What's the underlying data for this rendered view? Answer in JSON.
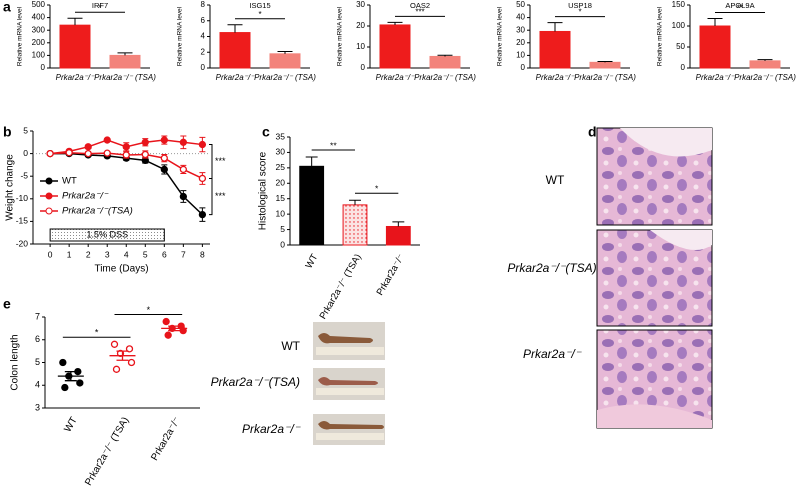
{
  "chart_data": [
    {
      "type": "bar",
      "panel": "a",
      "title": "IRF7",
      "ylabel": "Relative mRNA level",
      "categories": [
        "Prkar2a⁻/⁻",
        "Prkar2a⁻/⁻ (TSA)"
      ],
      "values": [
        340,
        100
      ],
      "errors": [
        55,
        20
      ],
      "colors": [
        "#ee1c1c",
        "#f3837b"
      ],
      "ylim": [
        0,
        500
      ],
      "yticks": [
        0,
        100,
        200,
        300,
        400,
        500
      ],
      "significance": [
        "*"
      ]
    },
    {
      "type": "bar",
      "title": "ISG15",
      "ylabel": "Relative mRNA level",
      "categories": [
        "Prkar2a⁻/⁻",
        "Prkar2a⁻/⁻ (TSA)"
      ],
      "values": [
        4.5,
        1.8
      ],
      "errors": [
        1.0,
        0.3
      ],
      "colors": [
        "#ee1c1c",
        "#f3837b"
      ],
      "ylim": [
        0,
        8
      ],
      "yticks": [
        0,
        2,
        4,
        6,
        8
      ],
      "significance": [
        "*"
      ]
    },
    {
      "type": "bar",
      "title": "OAS2",
      "ylabel": "Relative mRNA level",
      "categories": [
        "Prkar2a⁻/⁻",
        "Prkar2a⁻/⁻ (TSA)"
      ],
      "values": [
        20.5,
        5.5
      ],
      "errors": [
        1.2,
        0.6
      ],
      "colors": [
        "#ee1c1c",
        "#f3837b"
      ],
      "ylim": [
        0,
        30
      ],
      "yticks": [
        0,
        10,
        20,
        30
      ],
      "significance": [
        "***"
      ]
    },
    {
      "type": "bar",
      "title": "USP18",
      "ylabel": "Relative mRNA level",
      "categories": [
        "Prkar2a⁻/⁻",
        "Prkar2a⁻/⁻ (TSA)"
      ],
      "values": [
        29,
        4.5
      ],
      "errors": [
        7,
        0.7
      ],
      "colors": [
        "#ee1c1c",
        "#f3837b"
      ],
      "ylim": [
        0,
        50
      ],
      "yticks": [
        0,
        10,
        20,
        30,
        40,
        50
      ],
      "significance": [
        "*"
      ]
    },
    {
      "type": "bar",
      "title": "APOL9A",
      "ylabel": "Relative mRNA level",
      "categories": [
        "Prkar2a⁻/⁻",
        "Prkar2a⁻/⁻ (TSA)"
      ],
      "values": [
        100,
        17
      ],
      "errors": [
        18,
        3
      ],
      "colors": [
        "#ee1c1c",
        "#f3837b"
      ],
      "ylim": [
        0,
        150
      ],
      "yticks": [
        0,
        50,
        100,
        150
      ],
      "significance": [
        "**"
      ]
    },
    {
      "type": "line",
      "panel": "b",
      "xlabel": "Time (Days)",
      "ylabel": "Weight change",
      "x": [
        0,
        1,
        2,
        3,
        4,
        5,
        6,
        7,
        8
      ],
      "xlim": [
        -0.9,
        8.4
      ],
      "xticks": [
        0,
        1,
        2,
        3,
        4,
        5,
        6,
        7,
        8
      ],
      "ylim": [
        -20,
        5
      ],
      "yticks": [
        -20,
        -15,
        -10,
        -5,
        0,
        5
      ],
      "zero_line": true,
      "legend": "left",
      "series": [
        {
          "name": "WT",
          "color": "#000000",
          "marker": "filled",
          "values": [
            0,
            0,
            -0.3,
            -0.5,
            -1,
            -1.5,
            -3.5,
            -9.5,
            -13.5
          ],
          "errors": [
            0.2,
            0.3,
            0.3,
            0.4,
            0.5,
            0.6,
            1.0,
            1.3,
            1.5
          ]
        },
        {
          "name": "Prkar2a⁻/⁻",
          "color": "#e8141b",
          "marker": "filled",
          "values": [
            0,
            0.5,
            1.5,
            3,
            1.5,
            2.5,
            3,
            2.5,
            2
          ],
          "errors": [
            0.2,
            0.3,
            0.4,
            0.3,
            0.9,
            0.8,
            0.9,
            1.4,
            1.6
          ]
        },
        {
          "name": "Prkar2a⁻/⁻(TSA)",
          "color": "#e8141b",
          "marker": "open",
          "values": [
            0,
            0.2,
            0,
            0.1,
            -0.3,
            -0.2,
            -1,
            -3.5,
            -5.5
          ],
          "errors": [
            0.2,
            0.3,
            0.3,
            0.3,
            0.7,
            0.8,
            0.8,
            0.9,
            1.3
          ]
        }
      ],
      "significance": [
        "***",
        "***"
      ],
      "shaded_label": "1.5% DSS",
      "shaded_range": [
        0,
        6
      ]
    },
    {
      "type": "bar",
      "panel": "c",
      "ylabel": "Histological score",
      "categories": [
        "WT",
        "Prkar2a⁻/⁻ (TSA)",
        "Prkar2a⁻/⁻"
      ],
      "values": [
        25.5,
        13,
        6
      ],
      "errors": [
        3,
        1.5,
        1.5
      ],
      "colors": [
        "#000000",
        "#e8141b",
        "#e8141b"
      ],
      "fills": [
        "solid",
        "dotted",
        "solid"
      ],
      "ylim": [
        0,
        35
      ],
      "yticks": [
        0,
        5,
        10,
        15,
        20,
        25,
        30,
        35
      ],
      "significance": [
        "**",
        "*"
      ]
    },
    {
      "type": "dot",
      "panel": "e",
      "ylabel": "Colon length",
      "categories": [
        "WT",
        "Prkar2a⁻/⁻ (TSA)",
        "Prkar2a⁻/⁻"
      ],
      "points": [
        [
          5.0,
          4.6,
          4.4,
          4.1,
          3.9
        ],
        [
          5.8,
          5.6,
          5.4,
          5.0,
          4.7
        ],
        [
          6.8,
          6.6,
          6.5,
          6.4,
          6.2
        ]
      ],
      "means": [
        4.4,
        5.3,
        6.5
      ],
      "errors": [
        0.2,
        0.2,
        0.1
      ],
      "colors": [
        "#000000",
        "#e8141b",
        "#e8141b"
      ],
      "markers": [
        "filled",
        "open",
        "filled"
      ],
      "ylim": [
        3,
        7
      ],
      "yticks": [
        3,
        4,
        5,
        6,
        7
      ],
      "significance": [
        "*",
        "*"
      ]
    }
  ],
  "images": [
    {
      "panel": "d",
      "labels": [
        "WT",
        "Prkar2a⁻/⁻(TSA)",
        "Prkar2a⁻/⁻"
      ]
    },
    {
      "labels": [
        "WT",
        "Prkar2a⁻/⁻(TSA)",
        "Prkar2a⁻/⁻"
      ]
    }
  ]
}
